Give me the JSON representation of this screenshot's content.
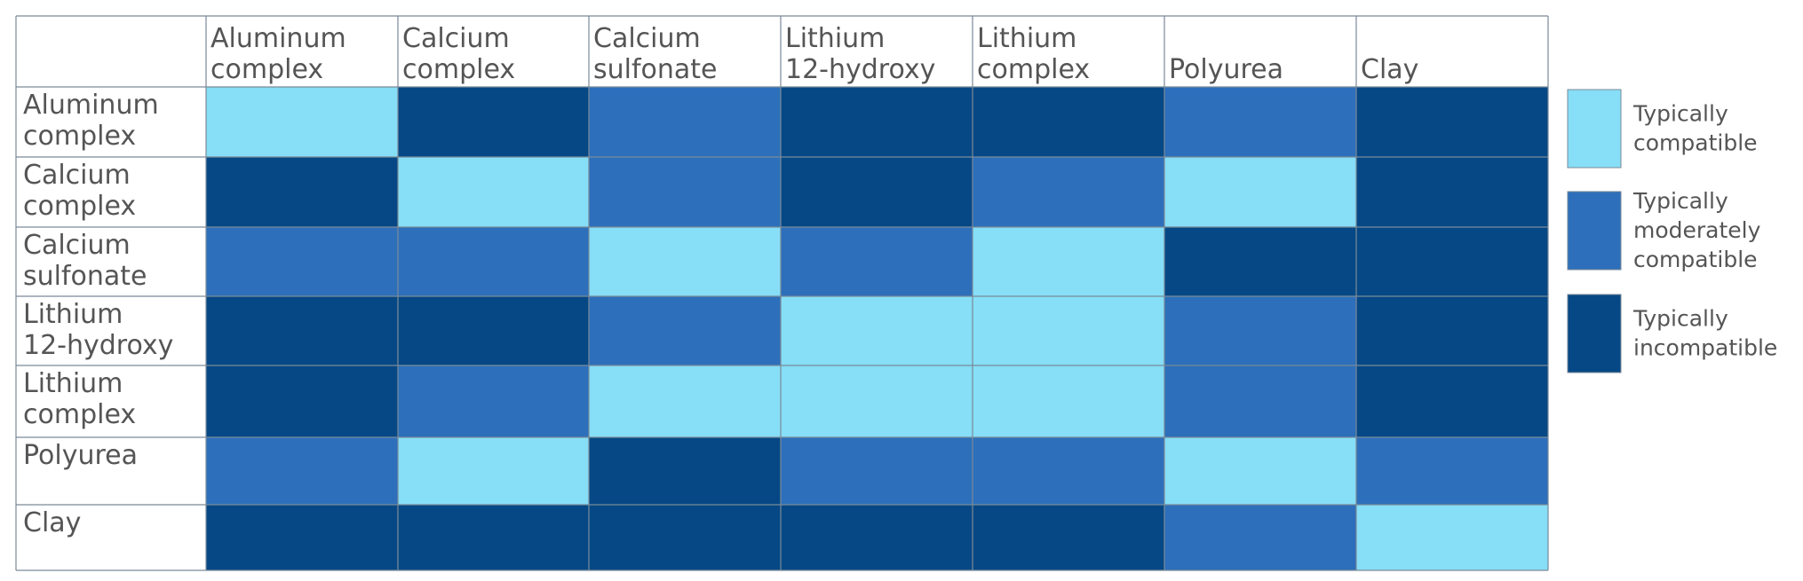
{
  "chart_data": {
    "type": "heatmap",
    "title": "",
    "xlabel": "",
    "ylabel": "",
    "columns": [
      "Aluminum\ncomplex",
      "Calcium\ncomplex",
      "Calcium\nsulfonate",
      "Lithium\n12-hydroxy",
      "Lithium\ncomplex",
      "Polyurea",
      "Clay"
    ],
    "rows": [
      "Aluminum\ncomplex",
      "Calcium\ncomplex",
      "Calcium\nsulfonate",
      "Lithium\n12-hydroxy",
      "Lithium\ncomplex",
      "Polyurea",
      "Clay"
    ],
    "categories": [
      {
        "label": "Typically\ncompatible",
        "color": "#87DEF7"
      },
      {
        "label": "Typically\nmoderately\ncompatible",
        "color": "#2D6FBA"
      },
      {
        "label": "Typically\nincompatible",
        "color": "#064885"
      }
    ],
    "values": [
      [
        0,
        2,
        1,
        2,
        2,
        1,
        2
      ],
      [
        2,
        0,
        1,
        2,
        1,
        0,
        2
      ],
      [
        1,
        1,
        0,
        1,
        0,
        2,
        2
      ],
      [
        2,
        2,
        1,
        0,
        0,
        1,
        2
      ],
      [
        2,
        1,
        0,
        0,
        0,
        1,
        2
      ],
      [
        1,
        0,
        2,
        1,
        1,
        0,
        1
      ],
      [
        2,
        2,
        2,
        2,
        2,
        1,
        0
      ]
    ],
    "legend_position": "right",
    "grid": true
  }
}
